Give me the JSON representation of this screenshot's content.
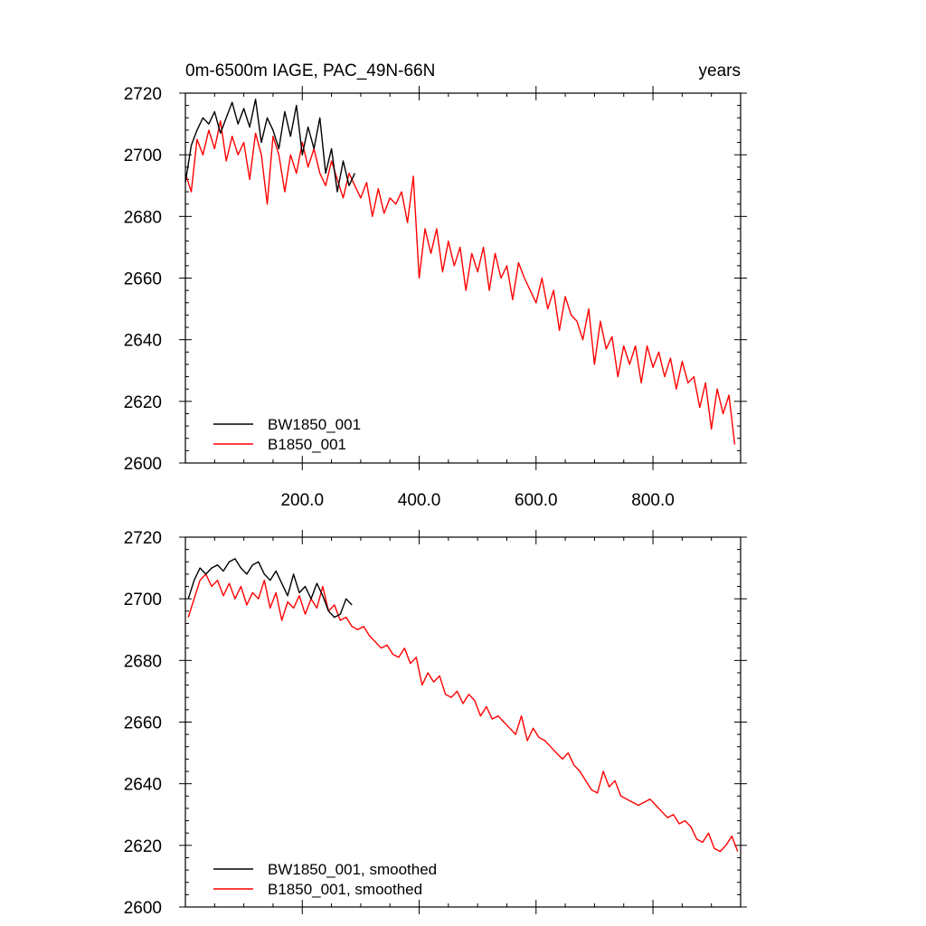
{
  "chart_data": [
    {
      "type": "line",
      "panel": "top",
      "title_left": "0m-6500m IAGE, PAC_49N-66N",
      "title_right": "years",
      "xlim": [
        0,
        950
      ],
      "ylim": [
        2600,
        2720
      ],
      "xticks": [
        200,
        400,
        600,
        800
      ],
      "xtick_labels": [
        "200.0",
        "400.0",
        "600.0",
        "800.0"
      ],
      "yticks": [
        2600,
        2620,
        2640,
        2660,
        2680,
        2700,
        2720
      ],
      "ytick_labels": [
        "2600",
        "2620",
        "2640",
        "2660",
        "2680",
        "2700",
        "2720"
      ],
      "legend_position": "bottom-left",
      "series": [
        {
          "name": "BW1850_001",
          "color": "#000000",
          "x": [
            0,
            10,
            20,
            30,
            40,
            50,
            60,
            70,
            80,
            90,
            100,
            110,
            120,
            130,
            140,
            150,
            160,
            170,
            180,
            190,
            200,
            210,
            220,
            230,
            240,
            250,
            260,
            270,
            280,
            290
          ],
          "y": [
            2691,
            2703,
            2708,
            2712,
            2710,
            2714,
            2707,
            2712,
            2717,
            2710,
            2715,
            2709,
            2718,
            2704,
            2712,
            2708,
            2702,
            2714,
            2706,
            2716,
            2700,
            2709,
            2702,
            2712,
            2694,
            2702,
            2688,
            2698,
            2690,
            2694
          ]
        },
        {
          "name": "B1850_001",
          "color": "#ff0000",
          "x": [
            0,
            10,
            20,
            30,
            40,
            50,
            60,
            70,
            80,
            90,
            100,
            110,
            120,
            130,
            140,
            150,
            160,
            170,
            180,
            190,
            200,
            210,
            220,
            230,
            240,
            250,
            260,
            270,
            280,
            290,
            300,
            310,
            320,
            330,
            340,
            350,
            360,
            370,
            380,
            390,
            400,
            410,
            420,
            430,
            440,
            450,
            460,
            470,
            480,
            490,
            500,
            510,
            520,
            530,
            540,
            550,
            560,
            570,
            580,
            590,
            600,
            610,
            620,
            630,
            640,
            650,
            660,
            670,
            680,
            690,
            700,
            710,
            720,
            730,
            740,
            750,
            760,
            770,
            780,
            790,
            800,
            810,
            820,
            830,
            840,
            850,
            860,
            870,
            880,
            890,
            900,
            910,
            920,
            930,
            940
          ],
          "y": [
            2694,
            2688,
            2705,
            2700,
            2708,
            2702,
            2711,
            2698,
            2706,
            2700,
            2704,
            2692,
            2707,
            2700,
            2684,
            2706,
            2700,
            2688,
            2700,
            2694,
            2704,
            2696,
            2702,
            2694,
            2690,
            2698,
            2692,
            2686,
            2694,
            2690,
            2686,
            2691,
            2680,
            2689,
            2681,
            2686,
            2684,
            2688,
            2678,
            2693,
            2660,
            2676,
            2668,
            2676,
            2662,
            2672,
            2664,
            2670,
            2656,
            2668,
            2662,
            2670,
            2656,
            2668,
            2660,
            2664,
            2653,
            2665,
            2660,
            2656,
            2652,
            2660,
            2650,
            2656,
            2643,
            2654,
            2648,
            2646,
            2640,
            2650,
            2632,
            2646,
            2637,
            2641,
            2628,
            2638,
            2632,
            2638,
            2626,
            2638,
            2631,
            2636,
            2628,
            2634,
            2624,
            2633,
            2626,
            2628,
            2618,
            2626,
            2611,
            2624,
            2616,
            2622,
            2606
          ]
        }
      ]
    },
    {
      "type": "line",
      "panel": "bottom",
      "xlim": [
        0,
        950
      ],
      "ylim": [
        2600,
        2720
      ],
      "xticks": [
        200,
        400,
        600,
        800
      ],
      "yticks": [
        2600,
        2620,
        2640,
        2660,
        2680,
        2700,
        2720
      ],
      "ytick_labels": [
        "2600",
        "2620",
        "2640",
        "2660",
        "2680",
        "2700",
        "2720"
      ],
      "legend_position": "bottom-left",
      "series": [
        {
          "name": "BW1850_001, smoothed",
          "color": "#000000",
          "x": [
            5,
            15,
            25,
            35,
            45,
            55,
            65,
            75,
            85,
            95,
            105,
            115,
            125,
            135,
            145,
            155,
            165,
            175,
            185,
            195,
            205,
            215,
            225,
            235,
            245,
            255,
            265,
            275,
            285
          ],
          "y": [
            2700,
            2706,
            2710,
            2708,
            2710,
            2711,
            2709,
            2712,
            2713,
            2710,
            2708,
            2711,
            2712,
            2708,
            2706,
            2709,
            2705,
            2701,
            2708,
            2702,
            2704,
            2700,
            2705,
            2701,
            2696,
            2694,
            2695,
            2700,
            2698
          ]
        },
        {
          "name": "B1850_001, smoothed",
          "color": "#ff0000",
          "x": [
            5,
            15,
            25,
            35,
            45,
            55,
            65,
            75,
            85,
            95,
            105,
            115,
            125,
            135,
            145,
            155,
            165,
            175,
            185,
            195,
            205,
            215,
            225,
            235,
            245,
            255,
            265,
            275,
            285,
            295,
            305,
            315,
            325,
            335,
            345,
            355,
            365,
            375,
            385,
            395,
            405,
            415,
            425,
            435,
            445,
            455,
            465,
            475,
            485,
            495,
            505,
            515,
            525,
            535,
            545,
            555,
            565,
            575,
            585,
            595,
            605,
            615,
            625,
            635,
            645,
            655,
            665,
            675,
            685,
            695,
            705,
            715,
            725,
            735,
            745,
            755,
            765,
            775,
            785,
            795,
            805,
            815,
            825,
            835,
            845,
            855,
            865,
            875,
            885,
            895,
            905,
            915,
            925,
            935,
            945
          ],
          "y": [
            2694,
            2700,
            2706,
            2708,
            2704,
            2706,
            2701,
            2705,
            2700,
            2704,
            2698,
            2702,
            2700,
            2706,
            2697,
            2702,
            2693,
            2699,
            2697,
            2701,
            2695,
            2700,
            2697,
            2704,
            2696,
            2698,
            2693,
            2694,
            2691,
            2690,
            2691,
            2688,
            2686,
            2684,
            2685,
            2682,
            2681,
            2684,
            2679,
            2681,
            2672,
            2676,
            2673,
            2675,
            2669,
            2668,
            2670,
            2666,
            2669,
            2667,
            2662,
            2665,
            2661,
            2662,
            2660,
            2658,
            2656,
            2662,
            2654,
            2658,
            2655,
            2654,
            2652,
            2650,
            2648,
            2650,
            2646,
            2644,
            2641,
            2638,
            2637,
            2644,
            2639,
            2641,
            2636,
            2635,
            2634,
            2633,
            2634,
            2635,
            2633,
            2631,
            2629,
            2630,
            2627,
            2628,
            2626,
            2622,
            2621,
            2624,
            2619,
            2618,
            2620,
            2623,
            2618
          ]
        }
      ]
    }
  ]
}
